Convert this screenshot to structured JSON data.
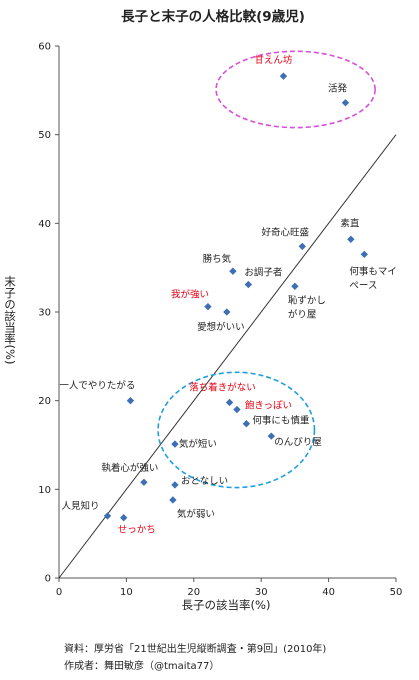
{
  "chart_data": {
    "type": "scatter",
    "title": "長子と末子の人格比較(9歳児)",
    "xlabel": "長子の該当率(%)",
    "ylabel": "末子の該当率(%)",
    "xlim": [
      0,
      50
    ],
    "ylim": [
      0,
      60
    ],
    "x_ticks": [
      "0",
      "10",
      "20",
      "30",
      "40",
      "50"
    ],
    "y_ticks": [
      "0",
      "10",
      "20",
      "30",
      "40",
      "50",
      "60"
    ],
    "grid": false,
    "reference_line": {
      "from": [
        0,
        0
      ],
      "to": [
        50,
        50
      ]
    },
    "highlight_color": "#e60012",
    "marker_color": "#3d6fb5",
    "points": [
      {
        "label": "甘えん坊",
        "x": 33.3,
        "y": 56.6,
        "highlight": true
      },
      {
        "label": "活発",
        "x": 42.5,
        "y": 53.6,
        "highlight": false
      },
      {
        "label": "素直",
        "x": 43.3,
        "y": 38.2,
        "highlight": false
      },
      {
        "label": "何事もマイペース",
        "x": 45.3,
        "y": 36.5,
        "highlight": false
      },
      {
        "label": "好奇心旺盛",
        "x": 36.1,
        "y": 37.4,
        "highlight": false
      },
      {
        "label": "勝ち気",
        "x": 25.8,
        "y": 34.6,
        "highlight": false
      },
      {
        "label": "お調子者",
        "x": 28.1,
        "y": 33.1,
        "highlight": false
      },
      {
        "label": "恥ずかしがり屋",
        "x": 35.0,
        "y": 32.9,
        "highlight": false
      },
      {
        "label": "我が強い",
        "x": 22.1,
        "y": 30.6,
        "highlight": true
      },
      {
        "label": "愛想がいい",
        "x": 24.9,
        "y": 30.0,
        "highlight": false
      },
      {
        "label": "一人でやりたがる",
        "x": 10.6,
        "y": 20.0,
        "highlight": false
      },
      {
        "label": "落ち着きがない",
        "x": 25.3,
        "y": 19.8,
        "highlight": true
      },
      {
        "label": "飽きっぽい",
        "x": 26.4,
        "y": 19.0,
        "highlight": true
      },
      {
        "label": "何事にも慎重",
        "x": 27.8,
        "y": 17.4,
        "highlight": false
      },
      {
        "label": "のんびり屋",
        "x": 31.5,
        "y": 16.0,
        "highlight": false
      },
      {
        "label": "気が短い",
        "x": 17.2,
        "y": 15.1,
        "highlight": false
      },
      {
        "label": "執着心が強い",
        "x": 12.6,
        "y": 10.8,
        "highlight": false
      },
      {
        "label": "おとなしい",
        "x": 17.2,
        "y": 10.5,
        "highlight": false
      },
      {
        "label": "気が弱い",
        "x": 16.9,
        "y": 8.8,
        "highlight": false
      },
      {
        "label": "人見知り",
        "x": 7.2,
        "y": 7.0,
        "highlight": false
      },
      {
        "label": "せっかち",
        "x": 9.6,
        "y": 6.8,
        "highlight": true
      }
    ],
    "group_ellipses": [
      {
        "color": "#d94fd9",
        "style": "dashed",
        "cx": 35.1,
        "cy": 55.1,
        "rx": 11.8,
        "ry": 4.3
      },
      {
        "color": "#1ea0e0",
        "style": "dashed",
        "cx": 26.3,
        "cy": 16.7,
        "rx": 11.6,
        "ry": 6.5
      }
    ]
  },
  "footer": {
    "source": "資料：厚労省「21世紀出生児縦断調査・第9回」(2010年)",
    "author": "作成者：舞田敏彦（@tmaita77）"
  }
}
